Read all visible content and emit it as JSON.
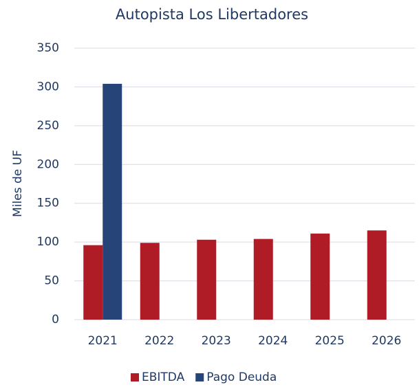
{
  "chart_data": {
    "type": "bar",
    "title": "Autopista Los Libertadores",
    "y_label": "Miles de UF",
    "categories": [
      "2021",
      "2022",
      "2023",
      "2024",
      "2025",
      "2026"
    ],
    "series": [
      {
        "name": "EBITDA",
        "color": "#b01c26",
        "values": [
          96,
          99,
          103,
          104,
          111,
          115
        ]
      },
      {
        "name": "Pago Deuda",
        "color": "#264478",
        "values": [
          304,
          null,
          null,
          null,
          null,
          null
        ]
      }
    ],
    "ylim": [
      0,
      350
    ],
    "yticks": [
      0,
      50,
      100,
      150,
      200,
      250,
      300,
      350
    ],
    "grid": true,
    "legend": "bottom"
  }
}
